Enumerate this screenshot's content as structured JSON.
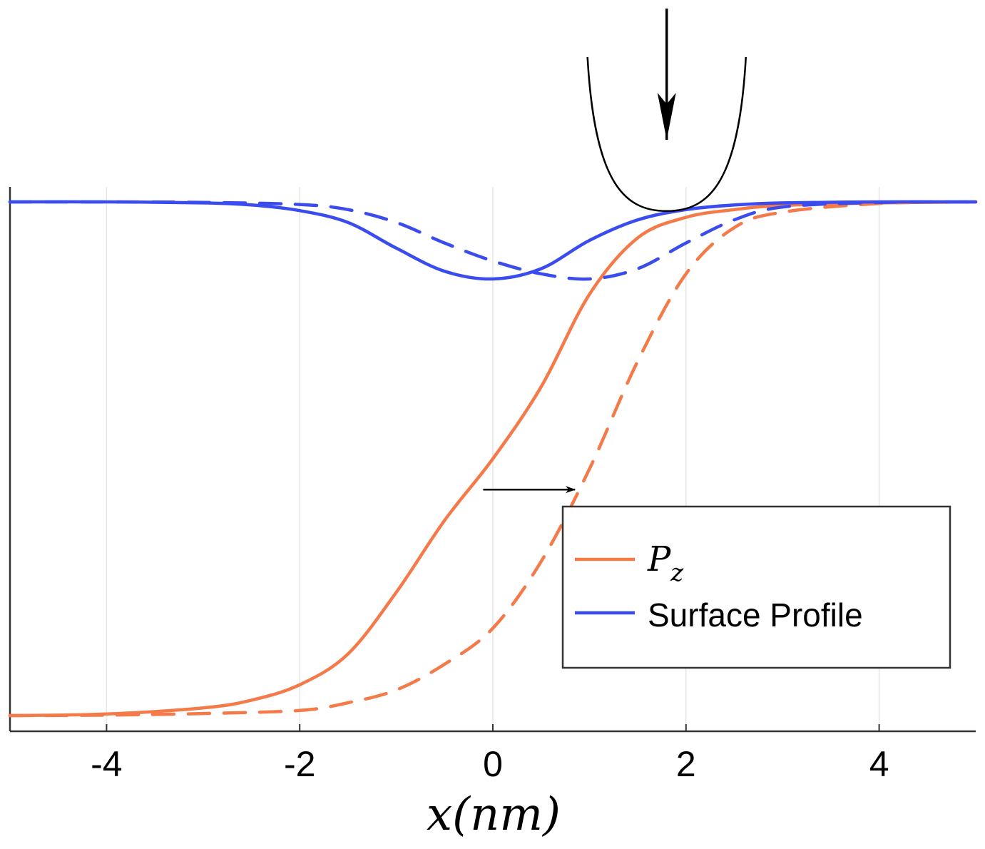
{
  "chart_data": {
    "type": "line",
    "xlabel": "x(nm)",
    "xlim": [
      -5,
      5
    ],
    "xticks": [
      -4,
      -2,
      0,
      2,
      4
    ],
    "xtick_labels": [
      "-4",
      "-2",
      "0",
      "2",
      "4"
    ],
    "ylim": [
      0,
      1
    ],
    "grid": "vertical",
    "legend_placement": "lower-right",
    "legend": [
      {
        "label_main": "P",
        "label_sub": "z",
        "color": "#f47a4a"
      },
      {
        "label": "Surface Profile",
        "color": "#3a4cf0"
      }
    ],
    "series": [
      {
        "color": "#f47a4a",
        "style": "solid",
        "x": [
          -5,
          -4,
          -3,
          -2.5,
          -2,
          -1.5,
          -1,
          -0.5,
          0,
          0.5,
          1,
          1.5,
          2,
          2.5,
          3,
          4,
          5
        ],
        "y": [
          0.0,
          0.003,
          0.015,
          0.03,
          0.06,
          0.12,
          0.24,
          0.38,
          0.5,
          0.64,
          0.82,
          0.93,
          0.97,
          0.985,
          0.993,
          0.998,
          1.0
        ]
      },
      {
        "color": "#f47a4a",
        "style": "dashed",
        "x": [
          -5,
          -4,
          -3,
          -2,
          -1.5,
          -1,
          -0.5,
          0,
          0.5,
          1,
          1.5,
          2,
          2.5,
          3,
          4,
          5
        ],
        "y": [
          0.0,
          0.001,
          0.004,
          0.01,
          0.025,
          0.05,
          0.1,
          0.17,
          0.3,
          0.48,
          0.69,
          0.86,
          0.95,
          0.98,
          0.997,
          1.0
        ]
      },
      {
        "color": "#3a4cf0",
        "style": "solid",
        "x": [
          -5,
          -4,
          -3,
          -2.5,
          -2,
          -1.5,
          -1,
          -0.5,
          0,
          0.5,
          1,
          1.5,
          2,
          2.5,
          3,
          4,
          5
        ],
        "y": [
          1.0,
          1.0,
          0.998,
          0.994,
          0.983,
          0.96,
          0.91,
          0.865,
          0.85,
          0.87,
          0.925,
          0.965,
          0.985,
          0.994,
          0.998,
          1.0,
          1.0
        ]
      },
      {
        "color": "#3a4cf0",
        "style": "dashed",
        "x": [
          -5,
          -4,
          -3,
          -2,
          -1.5,
          -1,
          -0.5,
          0,
          0.5,
          1,
          1.5,
          2,
          2.5,
          3,
          4,
          5
        ],
        "y": [
          1.0,
          1.0,
          0.999,
          0.995,
          0.985,
          0.96,
          0.92,
          0.885,
          0.86,
          0.85,
          0.87,
          0.92,
          0.965,
          0.99,
          0.999,
          1.0
        ]
      }
    ],
    "annotations": [
      {
        "type": "arrow",
        "from": [
          -0.1,
          0.44
        ],
        "to": [
          0.85,
          0.44
        ],
        "color": "#000000"
      },
      {
        "type": "arrow",
        "from": [
          1.8,
          1.38
        ],
        "to": [
          1.8,
          1.12
        ],
        "color": "#000000"
      },
      {
        "type": "tip",
        "x_center": 1.8,
        "bottom_y": 0.985,
        "half_width": 0.82,
        "top_y": 1.28,
        "color": "#000000"
      }
    ]
  }
}
